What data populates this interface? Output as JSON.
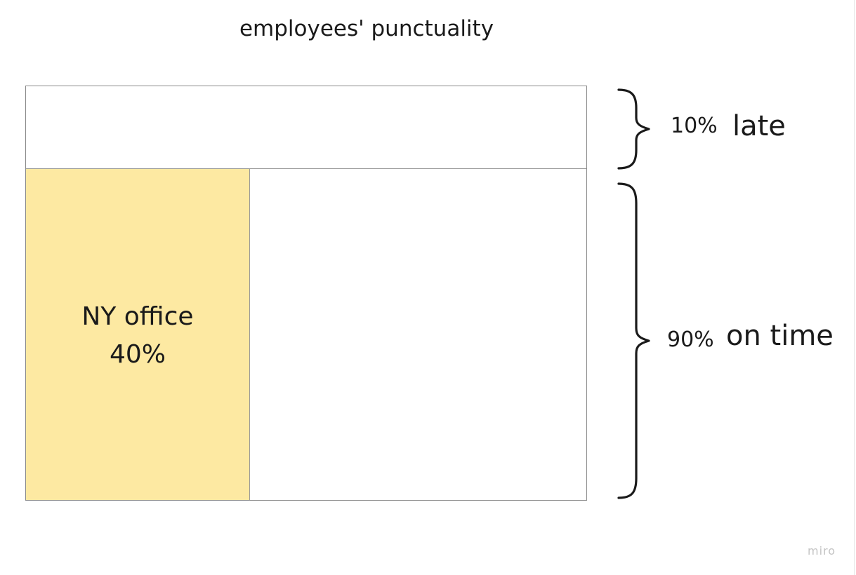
{
  "title": "employees' punctuality",
  "groups": {
    "late": {
      "percent_label": "10%",
      "label": "late",
      "fraction": 0.1
    },
    "on_time": {
      "percent_label": "90%",
      "label": "on time",
      "fraction": 0.9
    }
  },
  "ny_office": {
    "name": "NY office",
    "share_label": "40%",
    "fraction_of_on_time_width": 0.4,
    "color": "#fde9a2"
  },
  "watermark": "miro"
}
